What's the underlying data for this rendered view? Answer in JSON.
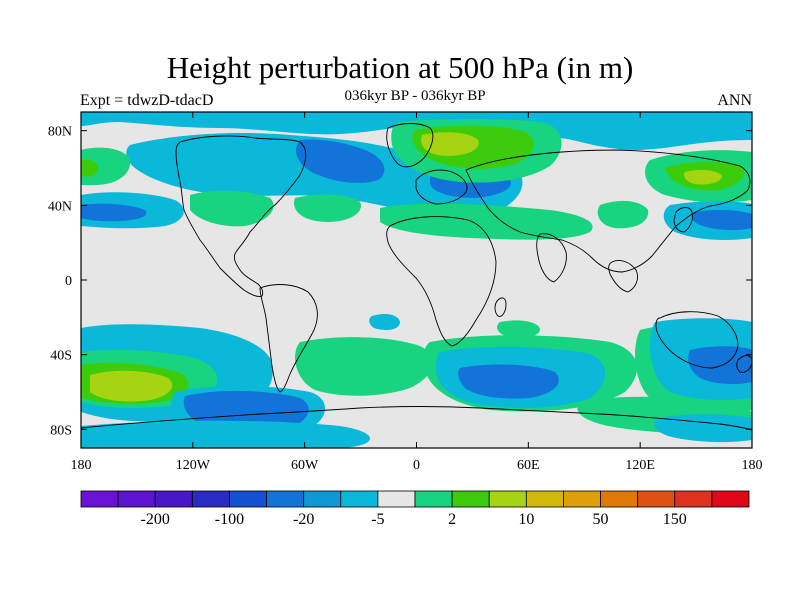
{
  "header": {
    "title": "Height perturbation at 500 hPa (in m)",
    "subtitle": "036kyr BP - 036kyr BP",
    "left_label": "Expt = tdwzD-tdacD",
    "right_label": "ANN"
  },
  "map": {
    "projection": "cylindrical equidistant",
    "lon_range": [
      -180,
      180
    ],
    "lat_range": [
      -90,
      90
    ],
    "background_color": "#e6e6e6",
    "lon_ticks": [
      {
        "value": -180,
        "label": "180"
      },
      {
        "value": -120,
        "label": "120W"
      },
      {
        "value": -60,
        "label": "60W"
      },
      {
        "value": 0,
        "label": "0"
      },
      {
        "value": 60,
        "label": "60E"
      },
      {
        "value": 120,
        "label": "120E"
      },
      {
        "value": 180,
        "label": "180"
      }
    ],
    "lat_ticks": [
      {
        "value": 80,
        "label": "80N"
      },
      {
        "value": 40,
        "label": "40N"
      },
      {
        "value": 0,
        "label": "0"
      },
      {
        "value": -40,
        "label": "40S"
      },
      {
        "value": -80,
        "label": "80S"
      }
    ]
  },
  "colorbar": {
    "colors": [
      "#6a12d6",
      "#5a14d2",
      "#4618c8",
      "#2a2ac6",
      "#1450d2",
      "#1274d8",
      "#0e98d6",
      "#0ab8da",
      "#e6e6e6",
      "#18d480",
      "#3ccc0c",
      "#a6d410",
      "#d2ba0a",
      "#dca00a",
      "#e07808",
      "#e05010",
      "#e03020",
      "#e00818"
    ],
    "labels": [
      "-200",
      "-100",
      "-20",
      "-5",
      "2",
      "10",
      "50",
      "150"
    ]
  },
  "chart_data": {
    "type": "filled-contour-map",
    "variable": "Height perturbation at 500 hPa",
    "units": "m",
    "contour_levels": [
      -200,
      -100,
      -20,
      -5,
      2,
      10,
      50,
      150
    ]
  }
}
